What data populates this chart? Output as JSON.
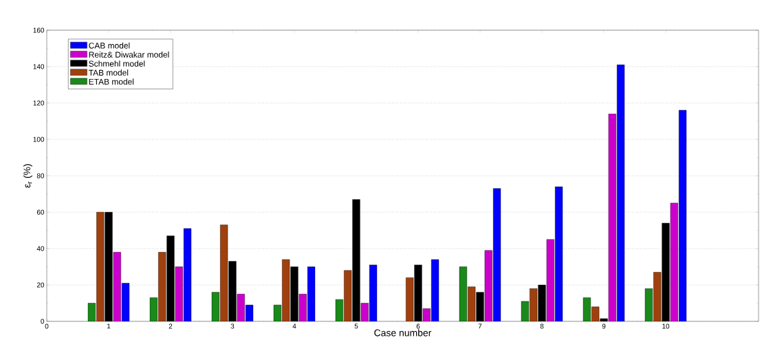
{
  "chart_data": {
    "type": "bar",
    "xlabel": "Case number",
    "ylabel": "ε$_{r}$ (%)",
    "x": [
      1,
      2,
      3,
      4,
      5,
      6,
      7,
      8,
      9,
      10
    ],
    "xlim": [
      0,
      11.5
    ],
    "xticks": [
      0,
      1,
      2,
      3,
      4,
      5,
      6,
      7,
      8,
      9,
      10
    ],
    "ylim": [
      0,
      160
    ],
    "yticks": [
      0,
      20,
      40,
      60,
      80,
      100,
      120,
      140,
      160
    ],
    "grid": "y",
    "legend": "top left",
    "series": [
      {
        "name": "ETAB model",
        "color": "#1a8a1a",
        "values": [
          10,
          13,
          16,
          9,
          12,
          null,
          30,
          11,
          13,
          18
        ]
      },
      {
        "name": "TAB model",
        "color": "#a0400e",
        "values": [
          60,
          38,
          53,
          34,
          28,
          24,
          19,
          18,
          8,
          27
        ]
      },
      {
        "name": "Schmehl model",
        "color": "#000000",
        "values": [
          60,
          47,
          33,
          30,
          67,
          31,
          16,
          20,
          1.5,
          54
        ]
      },
      {
        "name": "Reitz& Diwakar model",
        "color": "#cc00cc",
        "values": [
          38,
          30,
          15,
          15,
          10,
          7,
          39,
          45,
          114,
          65
        ]
      },
      {
        "name": "CAB model",
        "color": "#0000ff",
        "values": [
          21,
          51,
          9,
          30,
          31,
          34,
          73,
          74,
          141,
          116
        ]
      }
    ]
  }
}
